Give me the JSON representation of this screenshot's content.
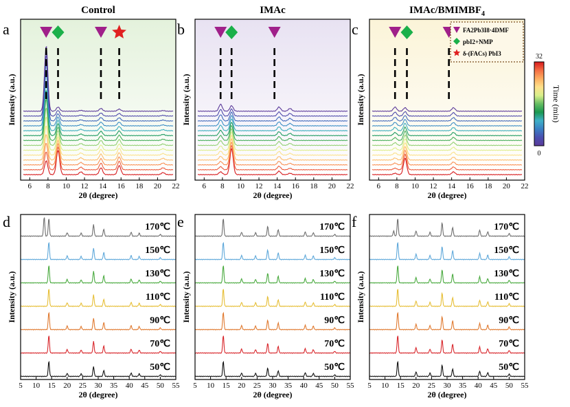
{
  "figure": {
    "top_titles": [
      "Control",
      "IMAc",
      "IMAc/BMIMBF4"
    ],
    "top_title_subscript": {
      "base": "IMAc/BMIMBF",
      "sub": "4"
    }
  },
  "colorbar": {
    "label": "Time (min)",
    "max_label": "32",
    "min_label": "0",
    "colors": [
      "#d7191c",
      "#f46d43",
      "#fdae61",
      "#fee08b",
      "#d9ef8b",
      "#66bd63",
      "#1a9850",
      "#3fb0c7",
      "#3a7fc4",
      "#4a4fb0",
      "#5b3a9a"
    ]
  },
  "legend": {
    "items": [
      {
        "label": "FA2Pb3I8·4DMF",
        "marker": "triangle-down",
        "color": "#a0208a"
      },
      {
        "label": "pbI2+NMP",
        "marker": "diamond",
        "color": "#1bb04a"
      },
      {
        "label": "δ-(FACs) PbI3",
        "marker": "star",
        "color": "#e02020"
      }
    ]
  },
  "chart_data": [
    {
      "panel": "a",
      "title": "Control",
      "type": "line",
      "xlabel": "2θ (degree)",
      "ylabel": "Intensity (a.u.)",
      "xlim": [
        5,
        22
      ],
      "xticks": [
        6,
        8,
        10,
        12,
        14,
        16,
        18,
        20,
        22
      ],
      "background": "#e4f2dc",
      "markers": [
        {
          "type": "triangle",
          "x": 7.8
        },
        {
          "type": "diamond",
          "x": 9.1
        },
        {
          "type": "triangle",
          "x": 13.8
        },
        {
          "type": "star",
          "x": 15.8
        }
      ],
      "series_count": 14,
      "peaks_first_scan": [
        {
          "x": 7.8,
          "h": 95
        },
        {
          "x": 9.1,
          "h": 6
        },
        {
          "x": 13.8,
          "h": 4
        },
        {
          "x": 15.8,
          "h": 3
        }
      ],
      "peaks_last_scan": [
        {
          "x": 7.8,
          "h": 20
        },
        {
          "x": 9.1,
          "h": 35
        },
        {
          "x": 11.6,
          "h": 4
        },
        {
          "x": 13.8,
          "h": 10
        },
        {
          "x": 15.8,
          "h": 13
        },
        {
          "x": 20.6,
          "h": 3
        }
      ]
    },
    {
      "panel": "b",
      "title": "IMAc",
      "type": "line",
      "xlabel": "2θ (degree)",
      "ylabel": "Intensity (a.u.)",
      "xlim": [
        5,
        22
      ],
      "xticks": [
        6,
        8,
        10,
        12,
        14,
        16,
        18,
        20,
        22
      ],
      "background": "#e8e2f2",
      "markers": [
        {
          "type": "triangle",
          "x": 7.8
        },
        {
          "type": "diamond",
          "x": 9.0
        },
        {
          "type": "triangle",
          "x": 13.7
        }
      ],
      "series_count": 14,
      "peaks_first_scan": [
        {
          "x": 7.8,
          "h": 10
        },
        {
          "x": 9.0,
          "h": 8
        },
        {
          "x": 14.2,
          "h": 6
        },
        {
          "x": 15.4,
          "h": 4
        }
      ],
      "peaks_last_scan": [
        {
          "x": 7.8,
          "h": 4
        },
        {
          "x": 9.0,
          "h": 38
        },
        {
          "x": 14.2,
          "h": 5
        },
        {
          "x": 15.4,
          "h": 2
        }
      ]
    },
    {
      "panel": "c",
      "title": "IMAc/BMIMBF4",
      "type": "line",
      "xlabel": "2θ (degree)",
      "ylabel": "Intensity (a.u.)",
      "xlim": [
        5,
        22
      ],
      "xticks": [
        6,
        8,
        10,
        12,
        14,
        16,
        18,
        20,
        22
      ],
      "background": "#fbf4d8",
      "markers": [
        {
          "type": "triangle",
          "x": 7.8
        },
        {
          "type": "diamond",
          "x": 9.1
        },
        {
          "type": "triangle",
          "x": 13.7
        }
      ],
      "series_count": 14,
      "peaks_first_scan": [
        {
          "x": 7.8,
          "h": 6
        },
        {
          "x": 8.6,
          "h": 5
        },
        {
          "x": 14.2,
          "h": 5
        }
      ],
      "peaks_last_scan": [
        {
          "x": 7.8,
          "h": 2
        },
        {
          "x": 8.9,
          "h": 24
        },
        {
          "x": 14.2,
          "h": 4
        }
      ]
    },
    {
      "panel": "d",
      "type": "line",
      "xlabel": "2θ (degree)",
      "ylabel": "Intensity (a.u.)",
      "xlim": [
        5,
        55
      ],
      "xticks": [
        5,
        10,
        15,
        20,
        25,
        30,
        35,
        40,
        45,
        50,
        55
      ],
      "series": [
        {
          "name": "50℃",
          "color": "#111111"
        },
        {
          "name": "70℃",
          "color": "#d8262b"
        },
        {
          "name": "90℃",
          "color": "#e07a30"
        },
        {
          "name": "110℃",
          "color": "#e6be35"
        },
        {
          "name": "130℃",
          "color": "#4aaa3f"
        },
        {
          "name": "150℃",
          "color": "#5ea8da"
        },
        {
          "name": "170℃",
          "color": "#6e6e6e"
        }
      ],
      "peaks": [
        {
          "x": 14.1,
          "h": 40
        },
        {
          "x": 20.0,
          "h": 8
        },
        {
          "x": 24.5,
          "h": 7
        },
        {
          "x": 28.5,
          "h": 26
        },
        {
          "x": 31.8,
          "h": 16
        },
        {
          "x": 40.6,
          "h": 9
        },
        {
          "x": 43.2,
          "h": 7
        },
        {
          "x": 50.0,
          "h": 4
        }
      ],
      "top_extra_peak": {
        "x": 12.6,
        "h": 38
      }
    },
    {
      "panel": "e",
      "type": "line",
      "xlabel": "2θ (degree)",
      "ylabel": "Intensity (a.u.)",
      "xlim": [
        5,
        55
      ],
      "xticks": [
        5,
        10,
        15,
        20,
        25,
        30,
        35,
        40,
        45,
        50,
        55
      ],
      "series": [
        {
          "name": "50℃",
          "color": "#111111"
        },
        {
          "name": "70℃",
          "color": "#d8262b"
        },
        {
          "name": "90℃",
          "color": "#e07a30"
        },
        {
          "name": "110℃",
          "color": "#e6be35"
        },
        {
          "name": "130℃",
          "color": "#4aaa3f"
        },
        {
          "name": "150℃",
          "color": "#5ea8da"
        },
        {
          "name": "170℃",
          "color": "#6e6e6e"
        }
      ],
      "peaks": [
        {
          "x": 14.1,
          "h": 40
        },
        {
          "x": 20.0,
          "h": 9
        },
        {
          "x": 24.5,
          "h": 8
        },
        {
          "x": 28.4,
          "h": 22
        },
        {
          "x": 31.8,
          "h": 15
        },
        {
          "x": 40.5,
          "h": 10
        },
        {
          "x": 43.1,
          "h": 8
        },
        {
          "x": 50.0,
          "h": 4
        }
      ]
    },
    {
      "panel": "f",
      "type": "line",
      "xlabel": "2θ (degree)",
      "ylabel": "Intensity (a.u.)",
      "xlim": [
        5,
        55
      ],
      "xticks": [
        5,
        10,
        15,
        20,
        25,
        30,
        35,
        40,
        45,
        50,
        55
      ],
      "series": [
        {
          "name": "50℃",
          "color": "#111111"
        },
        {
          "name": "70℃",
          "color": "#d8262b"
        },
        {
          "name": "90℃",
          "color": "#e07a30"
        },
        {
          "name": "110℃",
          "color": "#e6be35"
        },
        {
          "name": "130℃",
          "color": "#4aaa3f"
        },
        {
          "name": "150℃",
          "color": "#5ea8da"
        },
        {
          "name": "170℃",
          "color": "#6e6e6e"
        }
      ],
      "peaks": [
        {
          "x": 14.1,
          "h": 40
        },
        {
          "x": 20.0,
          "h": 12
        },
        {
          "x": 24.5,
          "h": 9
        },
        {
          "x": 28.4,
          "h": 30
        },
        {
          "x": 31.8,
          "h": 20
        },
        {
          "x": 40.5,
          "h": 14
        },
        {
          "x": 43.1,
          "h": 10
        },
        {
          "x": 50.0,
          "h": 6
        }
      ],
      "top_extra_peak": {
        "x": 12.8,
        "h": 10
      }
    }
  ]
}
